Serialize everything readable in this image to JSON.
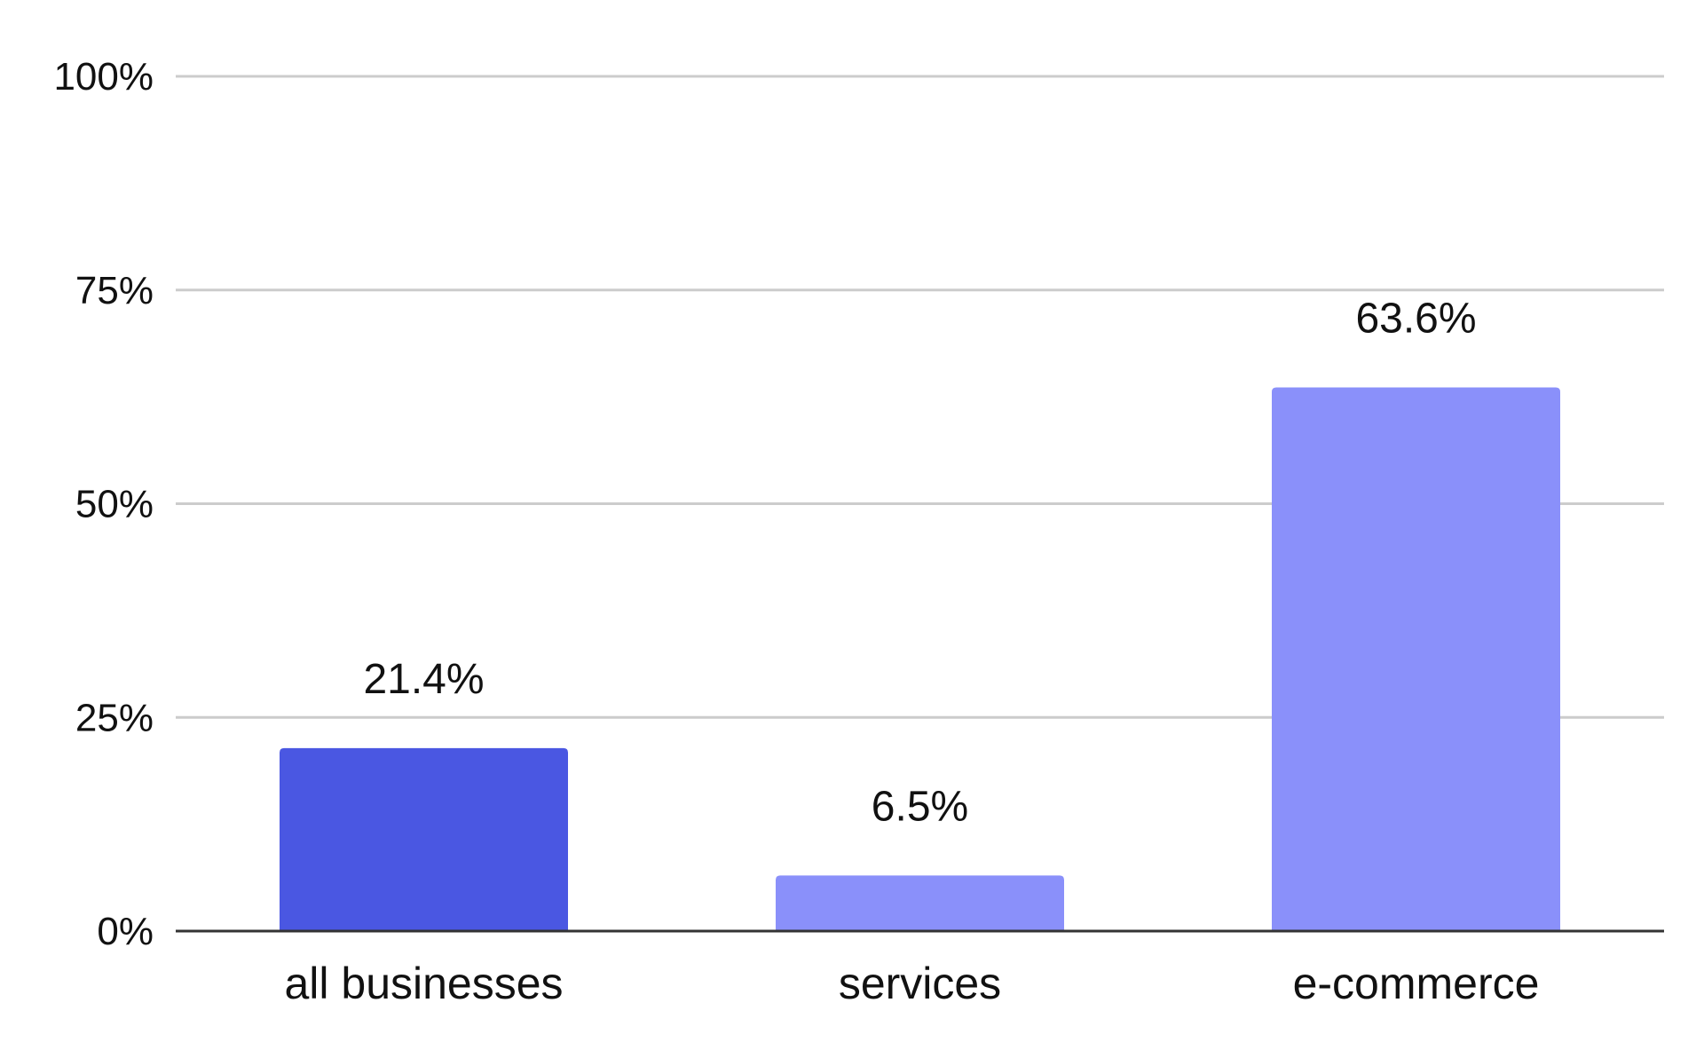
{
  "chart_data": {
    "type": "bar",
    "categories": [
      "all businesses",
      "services",
      "e-commerce"
    ],
    "values": [
      21.4,
      6.5,
      63.6
    ],
    "data_labels": [
      "21.4%",
      "6.5%",
      "63.6%"
    ],
    "colors": [
      "#4a57e2",
      "#8a90fa",
      "#8a90fa"
    ],
    "title": "",
    "xlabel": "",
    "ylabel": "",
    "ylim": [
      0,
      100
    ],
    "yticks": [
      0,
      25,
      50,
      75,
      100
    ],
    "ytick_labels": [
      "0%",
      "25%",
      "50%",
      "75%",
      "100%"
    ],
    "grid": true,
    "legend": "none"
  }
}
